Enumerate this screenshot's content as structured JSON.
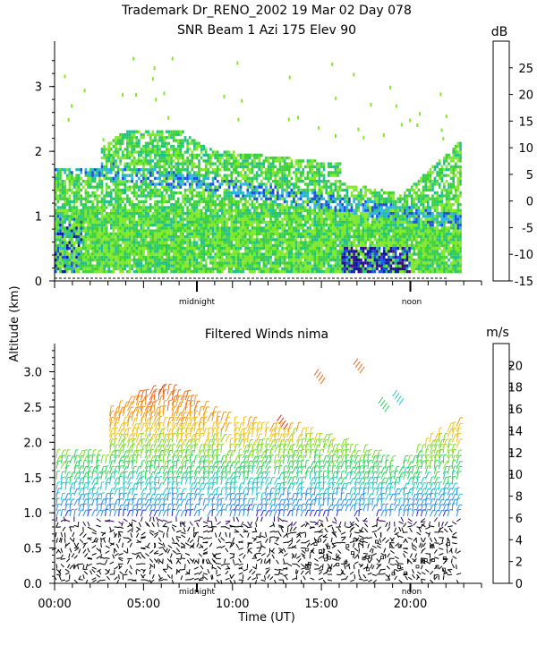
{
  "header": {
    "title_line1": "Trademark Dr_RENO_2002  19 Mar 02 Day 078",
    "title_line2": "SNR Beam 1 Azi 175 Elev 90"
  },
  "colors": {
    "snr_scale": [
      "#7fe82a",
      "#3ed13a",
      "#1fbf8f",
      "#2fb3e6",
      "#1a4fe0",
      "#0a1aa8",
      "#3a0a7a",
      "#1f0f3a",
      "#d91a1a",
      "#f0700a",
      "#f0a31a",
      "#f3c21a"
    ],
    "wind_scale": [
      "#000000",
      "#2a0a55",
      "#4a1a8f",
      "#2a2ae0",
      "#2f8fe6",
      "#22c7c7",
      "#2bd45a",
      "#7fdc2a",
      "#f0c21a",
      "#f0961a",
      "#f06a1a",
      "#e8301a",
      "#d41a1a"
    ]
  },
  "shared": {
    "y_axis_label": "Altitude (km)",
    "x_axis_label": "Time (UT)",
    "midnight_label": "midnight",
    "noon_label": "noon"
  },
  "chart_data": [
    {
      "type": "heatmap",
      "title": "SNR Beam 1 Azi 175 Elev 90",
      "ylabel": "Altitude (km)",
      "ylim": [
        0,
        3.7
      ],
      "yticks": [
        "0",
        "1",
        "2",
        "3"
      ],
      "xlim": [
        0,
        24
      ],
      "colorbar": {
        "unit": "dB",
        "ticks": [
          "-15",
          "-10",
          "-5",
          "0",
          "5",
          "10",
          "15",
          "20",
          "25"
        ],
        "range": [
          -15,
          30
        ]
      },
      "markers": {
        "midnight_hour": 8.0,
        "noon_hour": 20.0
      }
    },
    {
      "type": "scatter",
      "title": "Filtered Winds nima",
      "xlabel": "Time (UT)",
      "ylabel": "Altitude (km)",
      "ylim": [
        0,
        3.4
      ],
      "yticks": [
        "0.0",
        "0.5",
        "1.0",
        "1.5",
        "2.0",
        "2.5",
        "3.0"
      ],
      "xlim": [
        0,
        24
      ],
      "xticks": [
        "00:00",
        "05:00",
        "10:00",
        "15:00",
        "20:00"
      ],
      "colorbar": {
        "unit": "m/s",
        "ticks": [
          "0",
          "2",
          "4",
          "6",
          "8",
          "10",
          "12",
          "14",
          "16",
          "18",
          "20"
        ],
        "range": [
          0,
          22
        ]
      },
      "markers": {
        "midnight_hour": 8.0,
        "noon_hour": 20.0
      }
    }
  ]
}
